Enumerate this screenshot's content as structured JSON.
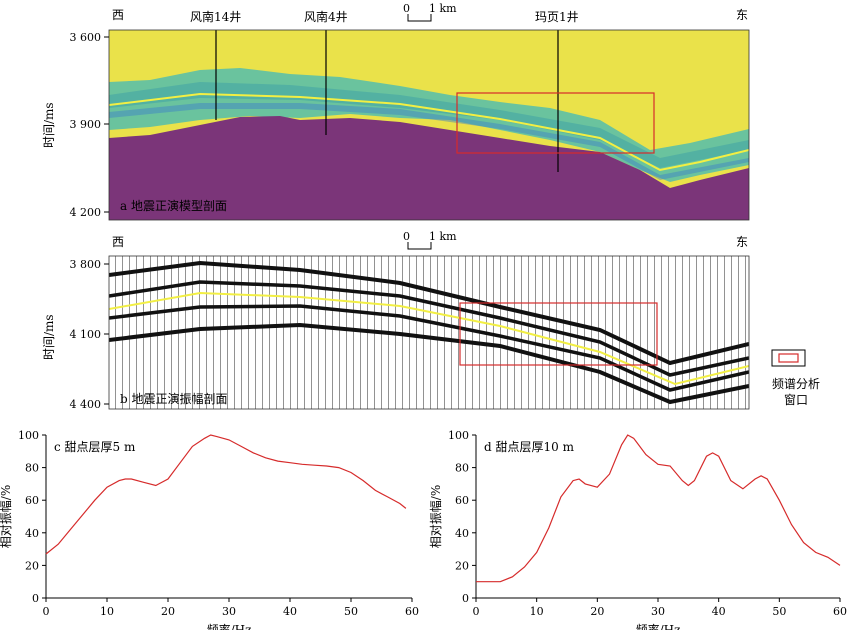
{
  "panel_a": {
    "west": "西",
    "east": "东",
    "scale_zero": "0",
    "scale_label": "1 km",
    "wells": [
      "风南14井",
      "风南4井",
      "玛页1井"
    ],
    "y_ticks": [
      "3 600",
      "3 900",
      "4 200"
    ],
    "y_label": "时间/ms",
    "caption": "a 地震正演模型剖面",
    "colors": {
      "background": "#eae24a",
      "basement": "#7b3579",
      "layer": "#6ac39e",
      "horizon": "#f2ef43",
      "window": "#d62b2b"
    }
  },
  "panel_b": {
    "west": "西",
    "east": "东",
    "scale_zero": "0",
    "scale_label": "1 km",
    "y_ticks": [
      "3 800",
      "4 100",
      "4 400"
    ],
    "y_label": "时间/ms",
    "caption": "b 地震正演振幅剖面"
  },
  "legend": {
    "line1": "频谱分析",
    "line2": "窗口"
  },
  "chart_data": [
    {
      "type": "line",
      "title": "c 甜点层厚5 m",
      "xlabel": "频率/Hz",
      "ylabel": "相对振幅/%",
      "xlim": [
        0,
        60
      ],
      "ylim": [
        0,
        100
      ],
      "x_ticks": [
        0,
        10,
        20,
        30,
        40,
        50,
        60
      ],
      "y_ticks": [
        0,
        20,
        40,
        60,
        80,
        100
      ],
      "color": "#d62b2b",
      "x": [
        0,
        2,
        4,
        6,
        8,
        10,
        12,
        13,
        14,
        16,
        18,
        20,
        22,
        24,
        26,
        27,
        28,
        30,
        32,
        34,
        36,
        38,
        40,
        42,
        44,
        46,
        48,
        50,
        52,
        54,
        56,
        58,
        59
      ],
      "y": [
        27,
        33,
        42,
        51,
        60,
        68,
        72,
        73,
        73,
        71,
        69,
        73,
        83,
        93,
        98,
        100,
        99,
        97,
        93,
        89,
        86,
        84,
        83,
        82,
        81.5,
        81,
        80,
        77,
        72,
        66,
        62,
        58,
        55
      ]
    },
    {
      "type": "line",
      "title": "d 甜点层厚10 m",
      "xlabel": "频率/Hz",
      "ylabel": "相对振幅/%",
      "xlim": [
        0,
        60
      ],
      "ylim": [
        0,
        100
      ],
      "x_ticks": [
        0,
        10,
        20,
        30,
        40,
        50,
        60
      ],
      "y_ticks": [
        0,
        20,
        40,
        60,
        80,
        100
      ],
      "color": "#d62b2b",
      "x": [
        0,
        2,
        4,
        6,
        8,
        10,
        12,
        14,
        16,
        17,
        18,
        20,
        22,
        24,
        25,
        26,
        28,
        30,
        32,
        34,
        35,
        36,
        38,
        39,
        40,
        42,
        44,
        46,
        47,
        48,
        50,
        52,
        54,
        56,
        58,
        60
      ],
      "y": [
        10,
        10,
        10,
        13,
        19,
        28,
        43,
        62,
        72,
        73,
        70,
        68,
        76,
        94,
        100,
        98,
        88,
        82,
        81,
        72,
        69,
        72,
        87,
        89,
        87,
        72,
        67,
        73,
        75,
        73,
        60,
        45,
        34,
        28,
        25,
        20
      ]
    }
  ]
}
